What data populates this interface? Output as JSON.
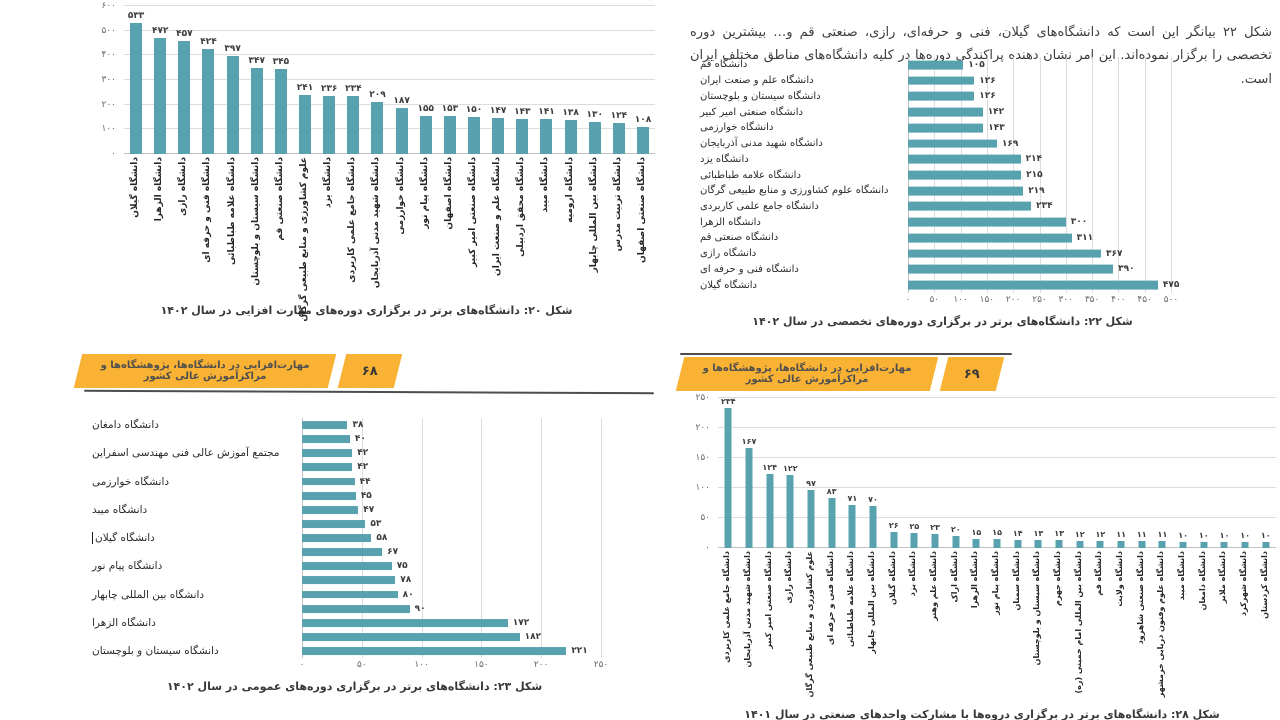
{
  "intro": {
    "text": "شکل ۲۲ بیانگر این است که دانشگاه‌های گیلان، فنی و حرفه‌ای، رازی، صنعتی قم و… بیشترین دوره تخصصی را برگزار نموده‌اند. این امر نشان دهنده پراکندگی دوره‌ها در کلیه دانشگاه‌های مناطق مختلف ایران است."
  },
  "banners": [
    {
      "side": "left",
      "title": "مهارت‌افزایی در دانشگاه‌ها، پژوهشگاه‌ها و مراکزآموزش عالی کشور",
      "page_number": "۶۸"
    },
    {
      "side": "right",
      "title": "مهارت‌افزایی در دانشگاه‌ها، پژوهشگاه‌ها و مراکزآموزش عالی کشور",
      "page_number": "۶۹"
    }
  ],
  "colors": {
    "bar_teal": "#58a1af",
    "banner_yellow": "#f9b233",
    "gridline": "#dcdcdc",
    "rule_dark": "#4d4d4d",
    "caption_text": "#383838"
  },
  "chart_data": [
    {
      "id": "fig20",
      "type": "bar",
      "orientation": "vertical",
      "title": "شکل ۲۰: دانشگاه‌های برتر در برگزاری دوره‌های مهارت افزایی در سال ۱۴۰۲",
      "xlabel": "",
      "ylabel": "",
      "ylim": [
        0,
        600
      ],
      "grid": true,
      "yticks": [
        {
          "value": 0,
          "label": "۰"
        },
        {
          "value": 100,
          "label": "۱۰۰"
        },
        {
          "value": 200,
          "label": "۲۰۰"
        },
        {
          "value": 300,
          "label": "۳۰۰"
        },
        {
          "value": 400,
          "label": "۴۰۰"
        },
        {
          "value": 500,
          "label": "۵۰۰"
        },
        {
          "value": 600,
          "label": "۶۰۰"
        }
      ],
      "bars": [
        {
          "category": "دانشگاه گیلان",
          "value": 533,
          "value_label": "۵۳۳"
        },
        {
          "category": "دانشگاه الزهرا",
          "value": 472,
          "value_label": "۴۷۲"
        },
        {
          "category": "دانشگاه رازی",
          "value": 457,
          "value_label": "۴۵۷"
        },
        {
          "category": "دانشگاه فنی و حرفه ای",
          "value": 424,
          "value_label": "۴۲۴"
        },
        {
          "category": "دانشگاه علامه طباطبائی",
          "value": 397,
          "value_label": "۳۹۷"
        },
        {
          "category": "دانشگاه سیستان و بلوچستان",
          "value": 347,
          "value_label": "۳۴۷"
        },
        {
          "category": "دانشگاه صنعتی قم",
          "value": 345,
          "value_label": "۳۴۵"
        },
        {
          "category": "علوم کشاورزی و منابع طبیعی گرگان",
          "value": 241,
          "value_label": "۲۴۱"
        },
        {
          "category": "دانشگاه یزد",
          "value": 236,
          "value_label": "۲۳۶"
        },
        {
          "category": "دانشگاه جامع علمی کاربردی",
          "value": 234,
          "value_label": "۲۳۴"
        },
        {
          "category": "دانشگاه شهید مدنی آذربایجان",
          "value": 209,
          "value_label": "۲۰۹"
        },
        {
          "category": "دانشگاه خوارزمی",
          "value": 187,
          "value_label": "۱۸۷"
        },
        {
          "category": "دانشگاه پیام نور",
          "value": 155,
          "value_label": "۱۵۵"
        },
        {
          "category": "دانشگاه اصفهان",
          "value": 153,
          "value_label": "۱۵۳"
        },
        {
          "category": "دانشگاه صنعتی امیر کبیر",
          "value": 150,
          "value_label": "۱۵۰"
        },
        {
          "category": "دانشگاه علم و صنعت ایران",
          "value": 147,
          "value_label": "۱۴۷"
        },
        {
          "category": "دانشگاه محقق اردبیلی",
          "value": 143,
          "value_label": "۱۴۳"
        },
        {
          "category": "دانشگاه میبد",
          "value": 141,
          "value_label": "۱۴۱"
        },
        {
          "category": "دانشگاه ارومیه",
          "value": 138,
          "value_label": "۱۳۸"
        },
        {
          "category": "دانشگاه بین المللی چابهار",
          "value": 130,
          "value_label": "۱۳۰"
        },
        {
          "category": "دانشگاه تربیت مدرس",
          "value": 124,
          "value_label": "۱۲۴"
        },
        {
          "category": "دانشگاه صنعتی اصفهان",
          "value": 108,
          "value_label": "۱۰۸"
        }
      ]
    },
    {
      "id": "fig22",
      "type": "bar",
      "orientation": "horizontal",
      "title": "شکل ۲۲: دانشگاه‌های برتر در برگزاری دوره‌های تخصصی در سال ۱۴۰۲",
      "xlabel": "",
      "ylabel": "",
      "xlim": [
        0,
        500
      ],
      "grid": true,
      "xticks": [
        {
          "value": 0,
          "label": "۰"
        },
        {
          "value": 50,
          "label": "۵۰"
        },
        {
          "value": 100,
          "label": "۱۰۰"
        },
        {
          "value": 150,
          "label": "۱۵۰"
        },
        {
          "value": 200,
          "label": "۲۰۰"
        },
        {
          "value": 250,
          "label": "۲۵۰"
        },
        {
          "value": 300,
          "label": "۳۰۰"
        },
        {
          "value": 350,
          "label": "۳۵۰"
        },
        {
          "value": 400,
          "label": "۴۰۰"
        },
        {
          "value": 450,
          "label": "۴۵۰"
        },
        {
          "value": 500,
          "label": "۵۰۰"
        }
      ],
      "bars": [
        {
          "category": "دانشگاه قم",
          "value": 105,
          "value_label": "۱۰۵"
        },
        {
          "category": "دانشگاه علم و صنعت ایران",
          "value": 126,
          "value_label": "۱۲۶"
        },
        {
          "category": "دانشگاه سیستان و بلوچستان",
          "value": 126,
          "value_label": "۱۲۶"
        },
        {
          "category": "دانشگاه صنعتی امیر کبیر",
          "value": 142,
          "value_label": "۱۴۲"
        },
        {
          "category": "دانشگاه خوارزمی",
          "value": 143,
          "value_label": "۱۴۳"
        },
        {
          "category": "دانشگاه شهید مدنی آذربایجان",
          "value": 169,
          "value_label": "۱۶۹"
        },
        {
          "category": "دانشگاه یزد",
          "value": 214,
          "value_label": "۲۱۴"
        },
        {
          "category": "دانشگاه علامه طباطبائی",
          "value": 215,
          "value_label": "۲۱۵"
        },
        {
          "category": "دانشگاه علوم کشاورزی و منابع طبیعی گرگان",
          "value": 219,
          "value_label": "۲۱۹"
        },
        {
          "category": "دانشگاه جامع علمی کاربردی",
          "value": 234,
          "value_label": "۲۳۴"
        },
        {
          "category": "دانشگاه الزهرا",
          "value": 300,
          "value_label": "۳۰۰"
        },
        {
          "category": "دانشگاه صنعتی قم",
          "value": 311,
          "value_label": "۳۱۱"
        },
        {
          "category": "دانشگاه رازی",
          "value": 367,
          "value_label": "۳۶۷"
        },
        {
          "category": "دانشگاه فنی و حرفه ای",
          "value": 390,
          "value_label": "۳۹۰"
        },
        {
          "category": "دانشگاه گیلان",
          "value": 475,
          "value_label": "۴۷۵"
        }
      ]
    },
    {
      "id": "fig23",
      "type": "bar",
      "orientation": "horizontal",
      "title": "شکل ۲۳: دانشگاه‌های برتر در برگزاری دوره‌های عمومی در سال ۱۴۰۲",
      "xlabel": "",
      "ylabel": "",
      "xlim": [
        0,
        250
      ],
      "grid": true,
      "xticks": [
        {
          "value": 0,
          "label": "۰"
        },
        {
          "value": 50,
          "label": "۵۰"
        },
        {
          "value": 100,
          "label": "۱۰۰"
        },
        {
          "value": 150,
          "label": "۱۵۰"
        },
        {
          "value": 200,
          "label": "۲۰۰"
        },
        {
          "value": 250,
          "label": "۲۵۰"
        }
      ],
      "bars": [
        {
          "category": "دانشگاه دامغان",
          "value": 38,
          "value_label": "۳۸"
        },
        {
          "category": "",
          "value": 40,
          "value_label": "۴۰"
        },
        {
          "category": "مجتمع آموزش عالی فنی مهندسی اسفراین",
          "value": 42,
          "value_label": "۴۲"
        },
        {
          "category": "",
          "value": 42,
          "value_label": "۴۲"
        },
        {
          "category": "دانشگاه خوارزمی",
          "value": 44,
          "value_label": "۴۴"
        },
        {
          "category": "",
          "value": 45,
          "value_label": "۴۵"
        },
        {
          "category": "دانشگاه میبد",
          "value": 47,
          "value_label": "۴۷"
        },
        {
          "category": "",
          "value": 53,
          "value_label": "۵۳"
        },
        {
          "category": "دانشگاه گیلان",
          "value": 58,
          "value_label": "۵۸",
          "caret": true
        },
        {
          "category": "",
          "value": 67,
          "value_label": "۶۷"
        },
        {
          "category": "دانشگاه پیام نور",
          "value": 75,
          "value_label": "۷۵"
        },
        {
          "category": "",
          "value": 78,
          "value_label": "۷۸"
        },
        {
          "category": "دانشگاه بین المللی چابهار",
          "value": 80,
          "value_label": "۸۰"
        },
        {
          "category": "",
          "value": 90,
          "value_label": "۹۰"
        },
        {
          "category": "دانشگاه الزهرا",
          "value": 172,
          "value_label": "۱۷۲"
        },
        {
          "category": "",
          "value": 182,
          "value_label": "۱۸۲"
        },
        {
          "category": "دانشگاه سیستان و بلوچستان",
          "value": 221,
          "value_label": "۲۲۱"
        }
      ]
    },
    {
      "id": "fig28",
      "type": "bar",
      "orientation": "vertical",
      "title": "شکل ۲۸: دانشگاه‌های برتر در برگزاری دروه‌ها با مشارکت واحدهای صنعتی در سال ۱۴۰۱",
      "xlabel": "",
      "ylabel": "",
      "ylim": [
        0,
        250
      ],
      "grid": true,
      "yticks": [
        {
          "value": 0,
          "label": "۰"
        },
        {
          "value": 50,
          "label": "۵۰"
        },
        {
          "value": 100,
          "label": "۱۰۰"
        },
        {
          "value": 150,
          "label": "۱۵۰"
        },
        {
          "value": 200,
          "label": "۲۰۰"
        },
        {
          "value": 250,
          "label": "۲۵۰"
        }
      ],
      "bars": [
        {
          "category": "دانشگاه جامع علمی کاربردی",
          "value": 234,
          "value_label": "۲۳۴"
        },
        {
          "category": "دانشگاه شهید مدنی آذربایجان",
          "value": 167,
          "value_label": "۱۶۷"
        },
        {
          "category": "دانشگاه صنعتی امیر کبیر",
          "value": 124,
          "value_label": "۱۲۴"
        },
        {
          "category": "دانشگاه رازی",
          "value": 122,
          "value_label": "۱۲۲"
        },
        {
          "category": "علوم کشاورزی و منابع طبیعی گرگان",
          "value": 97,
          "value_label": "۹۷"
        },
        {
          "category": "دانشگاه فنی و حرفه ای",
          "value": 83,
          "value_label": "۸۳"
        },
        {
          "category": "دانشگاه علامه طباطبائی",
          "value": 71,
          "value_label": "۷۱"
        },
        {
          "category": "دانشگاه بین المللی چابهار",
          "value": 70,
          "value_label": "۷۰"
        },
        {
          "category": "دانشگاه گیلان",
          "value": 26,
          "value_label": "۲۶"
        },
        {
          "category": "دانشگاه یزد",
          "value": 25,
          "value_label": "۲۵"
        },
        {
          "category": "دانشگاه علم وهنر",
          "value": 23,
          "value_label": "۲۳"
        },
        {
          "category": "دانشگاه اراک",
          "value": 20,
          "value_label": "۲۰"
        },
        {
          "category": "دانشگاه الزهرا",
          "value": 15,
          "value_label": "۱۵"
        },
        {
          "category": "دانشگاه پیام نور",
          "value": 15,
          "value_label": "۱۵"
        },
        {
          "category": "دانشگاه سمنان",
          "value": 14,
          "value_label": "۱۴"
        },
        {
          "category": "دانشگاه سیستان و بلوچستان",
          "value": 13,
          "value_label": "۱۳"
        },
        {
          "category": "دانشگاه جهرم",
          "value": 13,
          "value_label": "۱۳"
        },
        {
          "category": "دانشگاه بین المللی امام خمینی (ره)",
          "value": 12,
          "value_label": "۱۲"
        },
        {
          "category": "دانشگاه قم",
          "value": 12,
          "value_label": "۱۲"
        },
        {
          "category": "دانشگاه ولایت",
          "value": 11,
          "value_label": "۱۱"
        },
        {
          "category": "دانشگاه صنعتی شاهرود",
          "value": 11,
          "value_label": "۱۱"
        },
        {
          "category": "دانشگاه علوم وفنون دریایی خرمشهر",
          "value": 11,
          "value_label": "۱۱"
        },
        {
          "category": "دانشگاه میبد",
          "value": 10,
          "value_label": "۱۰"
        },
        {
          "category": "دانشگاه دامغان",
          "value": 10,
          "value_label": "۱۰"
        },
        {
          "category": "دانشگاه ملایر",
          "value": 10,
          "value_label": "۱۰"
        },
        {
          "category": "دانشگاه شهرکرد",
          "value": 10,
          "value_label": "۱۰"
        },
        {
          "category": "دانشگاه کردستان",
          "value": 10,
          "value_label": "۱۰"
        }
      ]
    }
  ]
}
